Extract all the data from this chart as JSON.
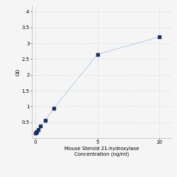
{
  "x": [
    0,
    0.05,
    0.1,
    0.2,
    0.4,
    0.8,
    1.5,
    5,
    10
  ],
  "y": [
    0.15,
    0.17,
    0.2,
    0.27,
    0.38,
    0.57,
    0.95,
    2.65,
    3.2
  ],
  "xlabel_line1": "Mouse Steroid 21-hydroxylase",
  "xlabel_line2": "Concentration (ng/ml)",
  "ylabel": "OD",
  "xlim": [
    -0.3,
    11
  ],
  "ylim": [
    0,
    4.2
  ],
  "yticks": [
    0.5,
    1.0,
    1.5,
    2.0,
    2.5,
    3.0,
    3.5,
    4.0
  ],
  "ytick_labels": [
    "0.5",
    "1",
    "1.5",
    "2",
    "2.5",
    "3",
    "3.5",
    "4"
  ],
  "xticks": [
    0,
    5,
    10
  ],
  "xtick_labels": [
    "0",
    "5",
    "10"
  ],
  "line_color": "#b8d4e8",
  "marker_color": "#1a3060",
  "marker_size": 3.5,
  "line_width": 0.8,
  "grid_color": "#d0d8e0",
  "background_color": "#f5f5f5",
  "tick_fontsize": 5,
  "label_fontsize": 5
}
